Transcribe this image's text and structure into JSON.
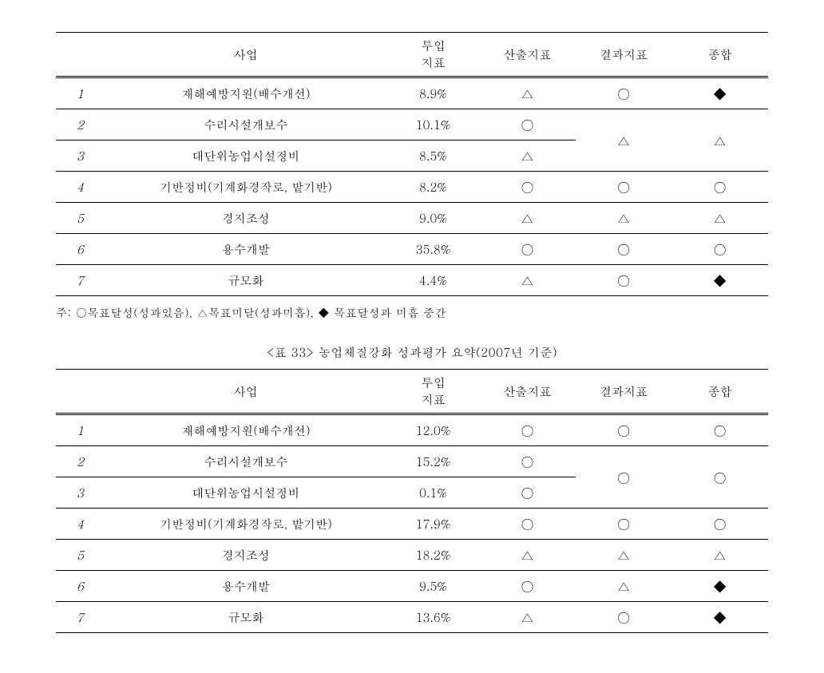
{
  "table1": {
    "headers": [
      "",
      "사업",
      "투입\n지표",
      "산출지표",
      "결과지표",
      "종합"
    ],
    "rows": [
      {
        "num": "1",
        "biz": "재해예방지원(배수개선)",
        "input": "8.9%",
        "output": "△",
        "result": "○",
        "total": "◆"
      },
      {
        "num": "2",
        "biz": "수리시설개보수",
        "input": "10.1%",
        "output": "○",
        "result": "△",
        "total": "△",
        "mergeDown": 2
      },
      {
        "num": "3",
        "biz": "대단위농업시설정비",
        "input": "8.5%",
        "output": "△"
      },
      {
        "num": "4",
        "biz": "기반정비(기계화경작로, 밭기반)",
        "input": "8.2%",
        "output": "○",
        "result": "○",
        "total": "○"
      },
      {
        "num": "5",
        "biz": "경지조성",
        "input": "9.0%",
        "output": "△",
        "result": "△",
        "total": "△"
      },
      {
        "num": "6",
        "biz": "용수개발",
        "input": "35.8%",
        "output": "○",
        "result": "○",
        "total": "○"
      },
      {
        "num": "7",
        "biz": "규모화",
        "input": "4.4%",
        "output": "△",
        "result": "○",
        "total": "◆"
      }
    ]
  },
  "note": "주: ○목표달성(성과있음), △목표미달(성과미흡), ◆ 목표달성과 미흡 중간",
  "caption2": "<표 33> 농업체질강화 성과평가 요약(2007년 기준)",
  "table2": {
    "headers": [
      "",
      "사업",
      "투입\n지표",
      "산출지표",
      "결과지표",
      "종합"
    ],
    "rows": [
      {
        "num": "1",
        "biz": "재해예방지원(배수개선)",
        "input": "12.0%",
        "output": "○",
        "result": "○",
        "total": "○"
      },
      {
        "num": "2",
        "biz": "수리시설개보수",
        "input": "15.2%",
        "output": "○",
        "result": "○",
        "total": "○",
        "mergeDown": 2
      },
      {
        "num": "3",
        "biz": "대단위농업시설정비",
        "input": "0.1%",
        "output": "○"
      },
      {
        "num": "4",
        "biz": "기반정비(기계화경작로, 밭기반)",
        "input": "17.9%",
        "output": "○",
        "result": "○",
        "total": "○"
      },
      {
        "num": "5",
        "biz": "경지조성",
        "input": "18.2%",
        "output": "△",
        "result": "△",
        "total": "△"
      },
      {
        "num": "6",
        "biz": "용수개발",
        "input": "9.5%",
        "output": "○",
        "result": "△",
        "total": "◆"
      },
      {
        "num": "7",
        "biz": "규모화",
        "input": "13.6%",
        "output": "△",
        "result": "○",
        "total": "◆"
      }
    ]
  }
}
